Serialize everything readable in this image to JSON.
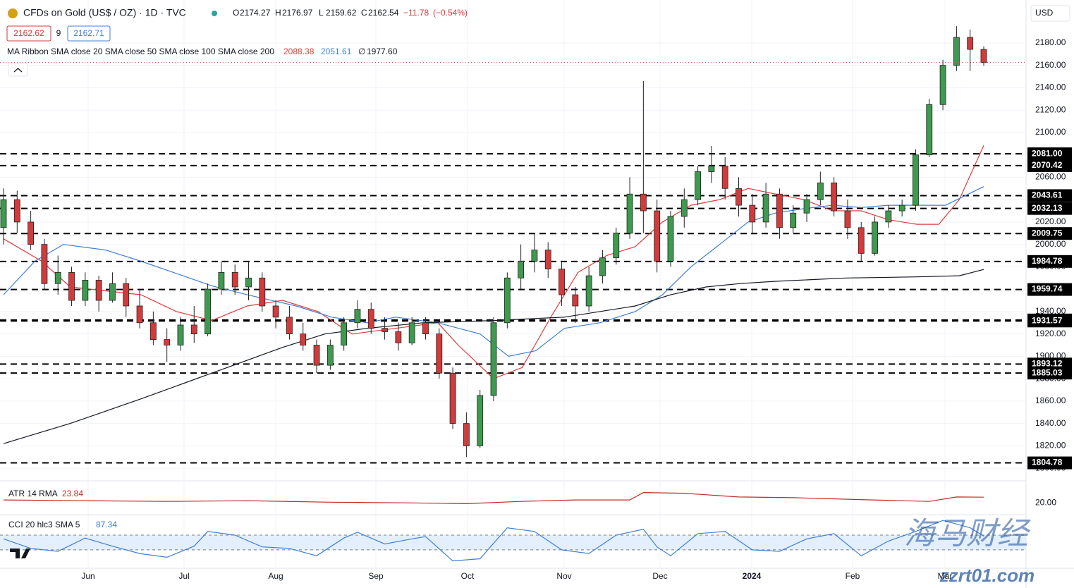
{
  "header": {
    "title": "CFDs on Gold (US$ / OZ) · 1D · TVC",
    "ohlc": [
      {
        "label": "O",
        "value": 2174.27
      },
      {
        "label": "H",
        "value": 2176.97
      },
      {
        "label": "L",
        "value": 2159.62
      },
      {
        "label": "C",
        "value": 2162.54
      }
    ],
    "change": {
      "value": -11.78,
      "label": "−11.78"
    },
    "change_pct": {
      "value": -0.54,
      "label": "(−0.54%)"
    },
    "bid": 2162.62,
    "spread": 9,
    "ask": 2162.71,
    "currency": "USD",
    "watermark": "海马财经",
    "watermark_url": "zzrt01.com"
  },
  "chart_data": [
    {
      "type": "candlestick",
      "title": "MA Ribbon SMA close 20 SMA close 50 SMA close 100 SMA close 200",
      "up_color": "#3d9a4e",
      "down_color": "#d23b3b",
      "ylim": [
        1790,
        2218.4
      ],
      "yticks": [
        {
          "value": 1800,
          "label": "1800.00"
        },
        {
          "value": 1820,
          "label": "1820.00"
        },
        {
          "value": 1840,
          "label": "1840.00"
        },
        {
          "value": 1860,
          "label": "1860.00"
        },
        {
          "value": 1880,
          "label": "1880.00"
        },
        {
          "value": 1900,
          "label": "1900.00"
        },
        {
          "value": 1920,
          "label": "1920.00"
        },
        {
          "value": 1940,
          "label": "1940.00"
        },
        {
          "value": 1960,
          "label": "1960.00"
        },
        {
          "value": 1980,
          "label": "1980.00"
        },
        {
          "value": 2000,
          "label": "2000.00"
        },
        {
          "value": 2020,
          "label": "2020.00"
        },
        {
          "value": 2040,
          "label": "2040.00"
        },
        {
          "value": 2060,
          "label": "2060.00"
        },
        {
          "value": 2080,
          "label": "2080.00"
        },
        {
          "value": 2100,
          "label": "2100.00"
        },
        {
          "value": 2120,
          "label": "2120.00"
        },
        {
          "value": 2140,
          "label": "2140.00"
        },
        {
          "value": 2160,
          "label": "2160.00"
        },
        {
          "value": 2180,
          "label": "2180.00"
        }
      ],
      "xtick_labels": [
        "Jun",
        "Jul",
        "Aug",
        "Sep",
        "Oct",
        "Nov",
        "Dec",
        "2024",
        "Feb",
        "Mar"
      ],
      "grid": true,
      "ohlc": [
        [
          2015,
          2050,
          2000,
          2040
        ],
        [
          2040,
          2048,
          2010,
          2020
        ],
        [
          2020,
          2030,
          1995,
          2000
        ],
        [
          2000,
          2005,
          1960,
          1965
        ],
        [
          1965,
          1990,
          1955,
          1975
        ],
        [
          1975,
          1980,
          1945,
          1950
        ],
        [
          1950,
          1975,
          1945,
          1968
        ],
        [
          1968,
          1972,
          1940,
          1950
        ],
        [
          1950,
          1975,
          1948,
          1965
        ],
        [
          1965,
          1970,
          1935,
          1945
        ],
        [
          1945,
          1960,
          1925,
          1930
        ],
        [
          1930,
          1940,
          1910,
          1915
        ],
        [
          1915,
          1925,
          1895,
          1910
        ],
        [
          1910,
          1935,
          1905,
          1928
        ],
        [
          1928,
          1945,
          1912,
          1920
        ],
        [
          1920,
          1965,
          1918,
          1960
        ],
        [
          1960,
          1985,
          1955,
          1975
        ],
        [
          1975,
          1982,
          1955,
          1962
        ],
        [
          1962,
          1985,
          1950,
          1970
        ],
        [
          1970,
          1975,
          1940,
          1945
        ],
        [
          1945,
          1950,
          1925,
          1935
        ],
        [
          1935,
          1945,
          1915,
          1920
        ],
        [
          1920,
          1930,
          1905,
          1910
        ],
        [
          1910,
          1915,
          1885,
          1892
        ],
        [
          1892,
          1915,
          1888,
          1910
        ],
        [
          1910,
          1935,
          1905,
          1930
        ],
        [
          1930,
          1950,
          1925,
          1942
        ],
        [
          1942,
          1948,
          1920,
          1925
        ],
        [
          1925,
          1935,
          1915,
          1922
        ],
        [
          1922,
          1930,
          1905,
          1912
        ],
        [
          1912,
          1935,
          1910,
          1930
        ],
        [
          1930,
          1935,
          1915,
          1920
        ],
        [
          1920,
          1925,
          1880,
          1885
        ],
        [
          1885,
          1890,
          1835,
          1840
        ],
        [
          1840,
          1850,
          1810,
          1820
        ],
        [
          1820,
          1870,
          1818,
          1865
        ],
        [
          1865,
          1935,
          1860,
          1930
        ],
        [
          1930,
          1975,
          1925,
          1970
        ],
        [
          1970,
          2000,
          1960,
          1985
        ],
        [
          1985,
          2010,
          1975,
          1995
        ],
        [
          1995,
          2002,
          1970,
          1978
        ],
        [
          1978,
          1985,
          1945,
          1955
        ],
        [
          1955,
          1962,
          1930,
          1945
        ],
        [
          1945,
          1980,
          1940,
          1972
        ],
        [
          1972,
          1995,
          1965,
          1988
        ],
        [
          1988,
          2015,
          1982,
          2010
        ],
        [
          2010,
          2060,
          2005,
          2045
        ],
        [
          2045,
          2146,
          2010,
          2030
        ],
        [
          2030,
          2040,
          1975,
          1985
        ],
        [
          1985,
          2030,
          1980,
          2025
        ],
        [
          2025,
          2050,
          2015,
          2040
        ],
        [
          2040,
          2070,
          2035,
          2065
        ],
        [
          2065,
          2088,
          2055,
          2070
        ],
        [
          2070,
          2078,
          2040,
          2050
        ],
        [
          2050,
          2060,
          2025,
          2035
        ],
        [
          2035,
          2045,
          2010,
          2020
        ],
        [
          2020,
          2055,
          2015,
          2045
        ],
        [
          2045,
          2050,
          2005,
          2015
        ],
        [
          2015,
          2035,
          2010,
          2028
        ],
        [
          2028,
          2045,
          2020,
          2040
        ],
        [
          2040,
          2065,
          2035,
          2055
        ],
        [
          2055,
          2060,
          2025,
          2030
        ],
        [
          2030,
          2040,
          2005,
          2015
        ],
        [
          2015,
          2020,
          1985,
          1992
        ],
        [
          1992,
          2025,
          1990,
          2020
        ],
        [
          2020,
          2035,
          2015,
          2030
        ],
        [
          2030,
          2040,
          2025,
          2035
        ],
        [
          2035,
          2085,
          2030,
          2080
        ],
        [
          2080,
          2130,
          2078,
          2125
        ],
        [
          2125,
          2165,
          2120,
          2160
        ],
        [
          2160,
          2195,
          2155,
          2185
        ],
        [
          2185,
          2192,
          2155,
          2174.27
        ],
        [
          2174.27,
          2176.97,
          2159.62,
          2162.54
        ]
      ],
      "series": [
        {
          "name": "SMA close 20",
          "color": "#e03b3b",
          "value_label": 2088.38,
          "x": [
            0,
            2.8,
            4.9,
            10.1,
            12.7,
            15.3,
            17.9,
            20.5,
            23.1,
            25.6,
            28.8,
            31.9,
            33.4,
            36,
            38.1,
            40.2,
            42.2,
            44.3,
            46.4,
            48.4,
            50.5,
            52.6,
            54.7,
            56.7,
            58.8,
            60.9,
            63,
            65,
            67.1,
            68.7,
            70.2,
            72
          ],
          "values": [
            2005,
            1985,
            1962,
            1955,
            1940,
            1932,
            1945,
            1950,
            1940,
            1920,
            1925,
            1930,
            1910,
            1880,
            1890,
            1935,
            1975,
            1990,
            1998,
            2020,
            2035,
            2040,
            2050,
            2045,
            2040,
            2030,
            2030,
            2022,
            2018,
            2018,
            2040,
            2088.38
          ]
        },
        {
          "name": "SMA close 50",
          "color": "#3f7fd6",
          "value_label": 2051.61,
          "x": [
            0,
            2.3,
            4.4,
            7.5,
            10.1,
            15.3,
            17.9,
            21.5,
            24.1,
            26.7,
            28.8,
            31.9,
            35,
            37.1,
            39.1,
            41.2,
            43.8,
            46.4,
            48.4,
            50.5,
            52.6,
            54.7,
            56.7,
            58.8,
            60.9,
            63,
            65,
            67.1,
            69.2,
            72
          ],
          "values": [
            1955,
            1985,
            2000,
            1995,
            1985,
            1963,
            1955,
            1945,
            1935,
            1930,
            1935,
            1930,
            1920,
            1900,
            1905,
            1925,
            1930,
            1940,
            1955,
            1980,
            2000,
            2020,
            2028,
            2032,
            2035,
            2033,
            2035,
            2035,
            2035,
            2051.61
          ]
        },
        {
          "name": "SMA close 100",
          "value_label": "∅"
        },
        {
          "name": "SMA close 200",
          "color": "#131722",
          "value_label": {
            "value": 1977.6,
            "label": "1977.60"
          },
          "x": [
            0,
            4.9,
            10.1,
            15.3,
            20.5,
            23.6,
            26.7,
            30.8,
            36,
            41.2,
            46.4,
            49,
            51.6,
            54.1,
            56.7,
            61.9,
            67.1,
            70.2,
            72
          ],
          "values": [
            1822,
            1840,
            1862,
            1885,
            1908,
            1920,
            1925,
            1930,
            1932,
            1935,
            1945,
            1955,
            1962,
            1965,
            1967,
            1970,
            1971,
            1972,
            1977.6
          ]
        }
      ],
      "levels": [
        {
          "value": 2081,
          "label": "2081.00"
        },
        {
          "value": 2070.42,
          "label": "2070.42"
        },
        {
          "value": 2043.61,
          "label": "2043.61"
        },
        {
          "value": 2032.13,
          "label": "2032.13"
        },
        {
          "value": 2009.75,
          "label": "2009.75"
        },
        {
          "value": 1984.78,
          "label": "1984.78"
        },
        {
          "value": 1959.74,
          "label": "1959.74"
        },
        {
          "value": 1932.49,
          "label": "1932.49"
        },
        {
          "value": 1931.57,
          "label": "1931.57"
        },
        {
          "value": 1893.12,
          "label": "1893.12"
        },
        {
          "value": 1885.03,
          "label": "1885.03"
        },
        {
          "value": 1804.78,
          "label": "1804.78"
        }
      ]
    },
    {
      "type": "line",
      "title": "ATR 14 RMA",
      "value_label": 23.84,
      "color": "#c62828",
      "ylim": [
        14,
        32
      ],
      "yticks": [
        {
          "value": 20,
          "label": "20.00"
        }
      ],
      "x": [
        0,
        6,
        12,
        18,
        24,
        30,
        34,
        38,
        42,
        46,
        47,
        50,
        54,
        58,
        62,
        66,
        68,
        70,
        72
      ],
      "values": [
        22,
        21.5,
        21,
        21.5,
        20.5,
        20,
        19.5,
        21,
        22,
        22,
        27,
        26.5,
        24,
        23.5,
        22.5,
        21.5,
        21,
        24,
        23.84
      ]
    },
    {
      "type": "line",
      "title": "CCI 20 hlc3 SMA 5",
      "value_label": 87.34,
      "color": "#3f7fd6",
      "ylim": [
        -340,
        330
      ],
      "bands": [
        100,
        -100
      ],
      "x": [
        0,
        2,
        4,
        6,
        8,
        10,
        12,
        14,
        15,
        17,
        19,
        21,
        23,
        25,
        26,
        28,
        30,
        31,
        33,
        35,
        37,
        39,
        41,
        43,
        45,
        47,
        48,
        49,
        51,
        53,
        55,
        57,
        59,
        61,
        63,
        65,
        67,
        69,
        71,
        72
      ],
      "values": [
        50,
        -80,
        -120,
        60,
        -50,
        -150,
        -200,
        -50,
        150,
        100,
        -60,
        -80,
        -180,
        60,
        140,
        -20,
        50,
        80,
        -250,
        -220,
        200,
        150,
        -100,
        -150,
        100,
        180,
        -60,
        -180,
        120,
        150,
        -100,
        -120,
        50,
        120,
        -180,
        20,
        150,
        300,
        200,
        87.34
      ]
    }
  ]
}
